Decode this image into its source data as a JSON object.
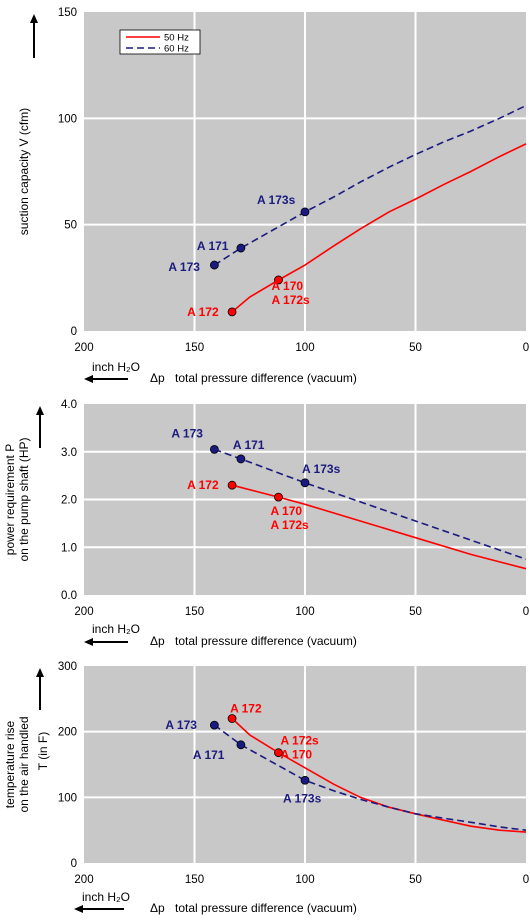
{
  "colors": {
    "s50": "#ff0000",
    "s60": "#1a1a80",
    "plot_bg": "#c8c8c8",
    "grid": "#ffffff"
  },
  "chart_data": [
    {
      "type": "line",
      "ylabel": "suction capacity V (cfm)",
      "xlabel": "total pressure difference (vacuum)",
      "xsymbol": "Δp",
      "xunit": "inch H₂O",
      "xlim": [
        200,
        0
      ],
      "ylim": [
        0,
        150
      ],
      "xticks": [
        "200",
        "150",
        "100",
        "50",
        "0"
      ],
      "yticks": [
        "0",
        "50",
        "100",
        "150"
      ],
      "legend": {
        "position": "top-left",
        "entries": [
          "50 Hz",
          "60 Hz"
        ]
      },
      "series": [
        {
          "name": "50 Hz",
          "x": [
            133,
            125,
            112,
            100,
            87,
            75,
            62,
            50,
            37,
            25,
            12,
            0
          ],
          "y": [
            9,
            16,
            24,
            31,
            40,
            48,
            56,
            62,
            69,
            75,
            82,
            88
          ]
        },
        {
          "name": "60 Hz",
          "x": [
            141,
            129,
            100,
            87,
            75,
            62,
            50,
            37,
            25,
            12,
            0
          ],
          "y": [
            31,
            39,
            56,
            63,
            70,
            77,
            83,
            89,
            94,
            100,
            106
          ]
        }
      ],
      "points": [
        {
          "label": "A 172",
          "x": 133,
          "y": 9,
          "series": 0
        },
        {
          "label": "A 170\nA 172s",
          "x": 112,
          "y": 24,
          "series": 0
        },
        {
          "label": "A 173",
          "x": 141,
          "y": 31,
          "series": 1
        },
        {
          "label": "A 171",
          "x": 129,
          "y": 39,
          "series": 1
        },
        {
          "label": "A 173s",
          "x": 100,
          "y": 56,
          "series": 1
        }
      ]
    },
    {
      "type": "line",
      "ylabel": "power requirement P\non the pump shaft (HP)",
      "xlabel": "total pressure difference (vacuum)",
      "xsymbol": "Δp",
      "xunit": "inch H₂O",
      "xlim": [
        200,
        0
      ],
      "ylim": [
        0,
        4
      ],
      "xticks": [
        "200",
        "150",
        "100",
        "50",
        "0"
      ],
      "yticks": [
        "0.0",
        "1.0",
        "2.0",
        "3.0",
        "4.0"
      ],
      "series": [
        {
          "name": "50 Hz",
          "x": [
            133,
            112,
            100,
            75,
            50,
            25,
            0
          ],
          "y": [
            2.3,
            2.05,
            1.9,
            1.55,
            1.2,
            0.85,
            0.55
          ]
        },
        {
          "name": "60 Hz",
          "x": [
            141,
            129,
            100,
            75,
            50,
            25,
            0
          ],
          "y": [
            3.05,
            2.85,
            2.35,
            1.95,
            1.55,
            1.15,
            0.75
          ]
        }
      ],
      "points": [
        {
          "label": "A 172",
          "x": 133,
          "y": 2.3,
          "series": 0
        },
        {
          "label": "A 170\nA 172s",
          "x": 112,
          "y": 2.05,
          "series": 0
        },
        {
          "label": "A 173",
          "x": 141,
          "y": 3.05,
          "series": 1
        },
        {
          "label": "A 171",
          "x": 129,
          "y": 2.85,
          "series": 1
        },
        {
          "label": "A 173s",
          "x": 100,
          "y": 2.35,
          "series": 1
        }
      ]
    },
    {
      "type": "line",
      "ylabel": "temperature rise\non the air handled",
      "ylabel2": "T   (in F)",
      "xlabel": "total pressure difference (vacuum)",
      "xsymbol": "Δp",
      "xunit": "inch H₂O",
      "xlim": [
        200,
        0
      ],
      "ylim": [
        0,
        300
      ],
      "xticks": [
        "200",
        "150",
        "100",
        "50",
        "0"
      ],
      "yticks": [
        "0",
        "100",
        "200",
        "300"
      ],
      "series": [
        {
          "name": "50 Hz",
          "x": [
            133,
            125,
            112,
            100,
            87,
            75,
            62,
            50,
            37,
            25,
            12,
            0
          ],
          "y": [
            220,
            195,
            168,
            145,
            120,
            100,
            85,
            75,
            65,
            56,
            50,
            47
          ]
        },
        {
          "name": "60 Hz",
          "x": [
            141,
            129,
            100,
            87,
            75,
            62,
            50,
            37,
            25,
            12,
            0
          ],
          "y": [
            210,
            180,
            126,
            110,
            97,
            85,
            75,
            68,
            62,
            55,
            50
          ]
        }
      ],
      "points": [
        {
          "label": "A 172",
          "x": 133,
          "y": 220,
          "series": 0
        },
        {
          "label": "A 172s\nA 170",
          "x": 112,
          "y": 168,
          "series": 0
        },
        {
          "label": "A 173",
          "x": 141,
          "y": 210,
          "series": 1
        },
        {
          "label": "A 171",
          "x": 129,
          "y": 180,
          "series": 1
        },
        {
          "label": "A 173s",
          "x": 100,
          "y": 126,
          "series": 1
        }
      ]
    }
  ]
}
